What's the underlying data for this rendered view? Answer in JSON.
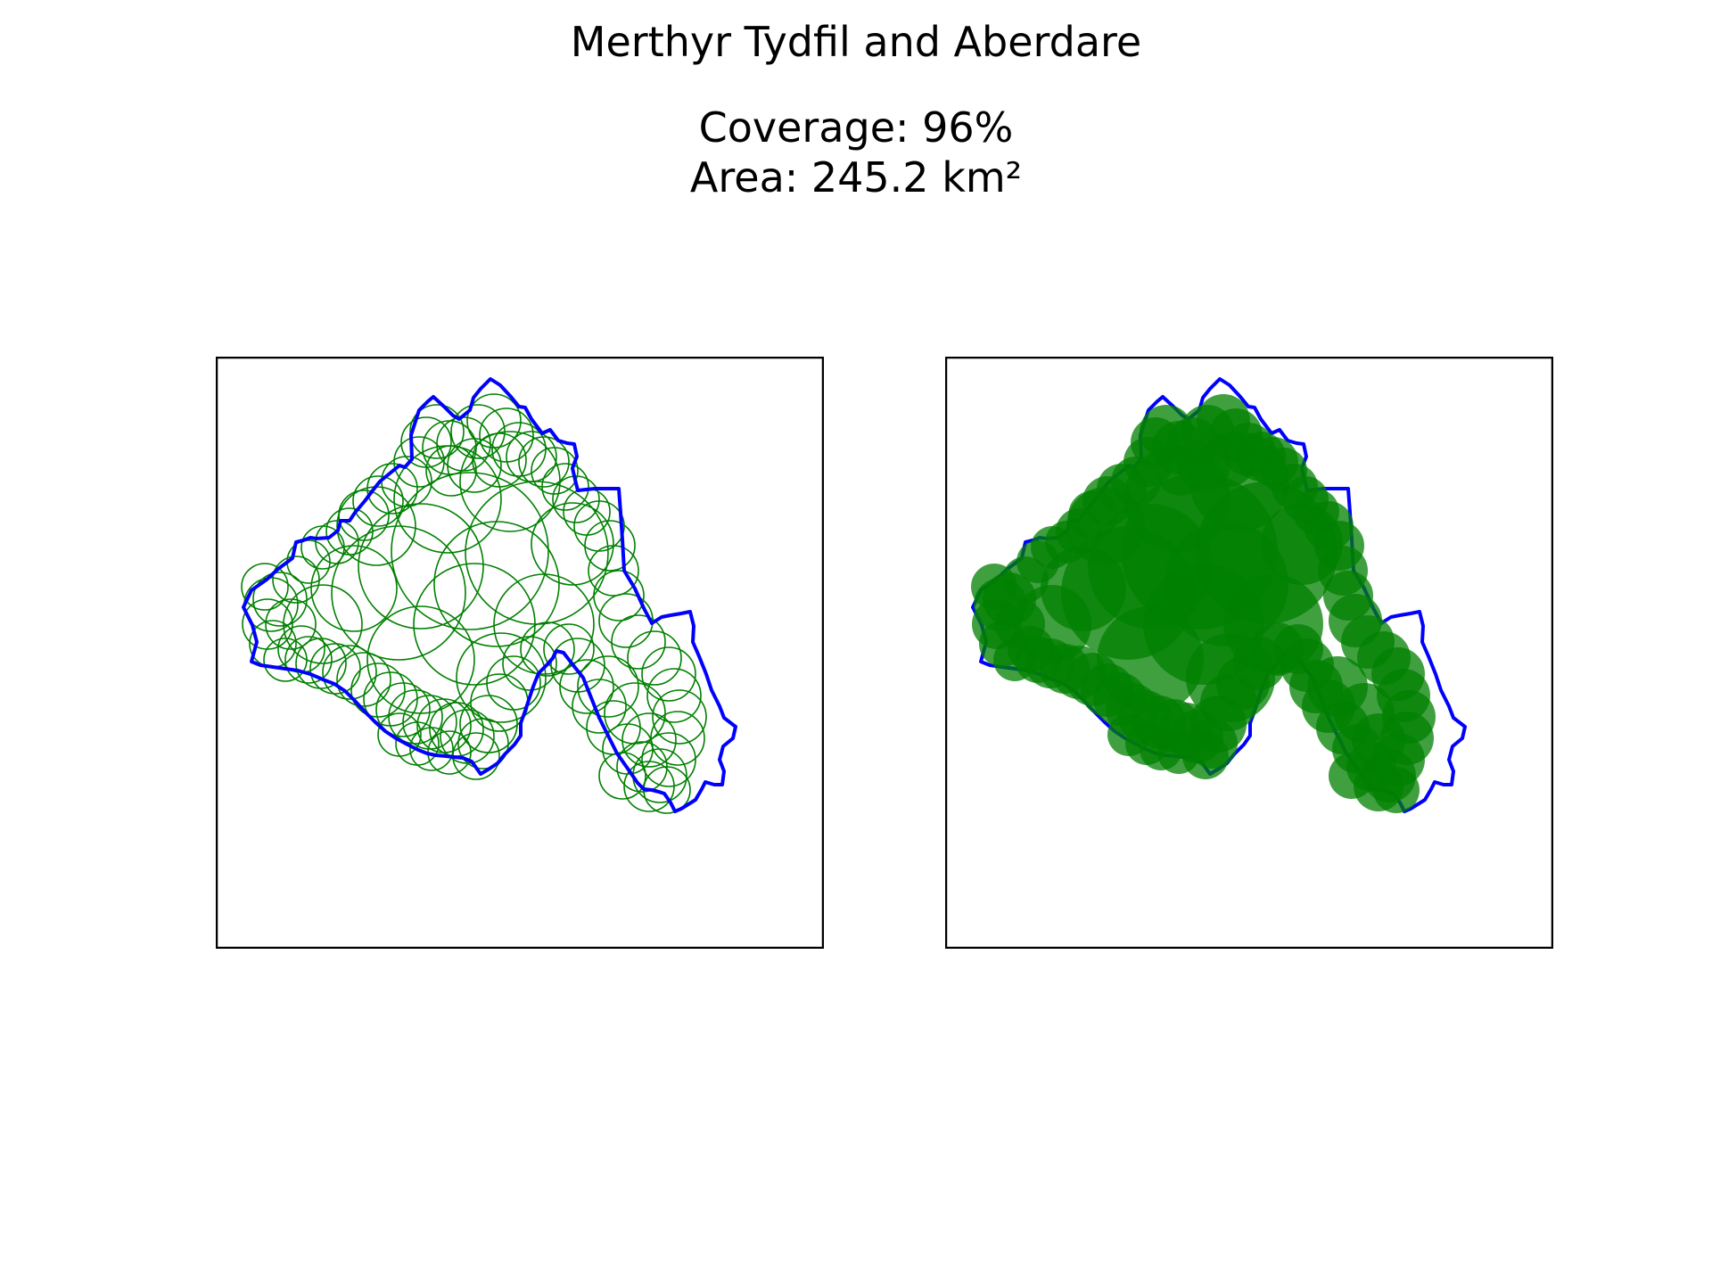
{
  "figure": {
    "title": "Merthyr Tydfil and Aberdare",
    "coverage_line": "Coverage: 96%",
    "area_line": "Area: 245.2 km²"
  },
  "colors": {
    "boundary": "#0000ff",
    "circle": "#008000",
    "frame": "#000000",
    "background": "#ffffff"
  },
  "chart_data": [
    {
      "type": "map",
      "panel": "circle-outlines",
      "boundary_color": "#0000ff",
      "circle_style": "outline",
      "circle_color": "#008000",
      "axes_ticks": false
    },
    {
      "type": "map",
      "panel": "circle-fill",
      "boundary_color": "#0000ff",
      "circle_style": "filled",
      "circle_color": "#008000",
      "axes_ticks": false
    }
  ]
}
